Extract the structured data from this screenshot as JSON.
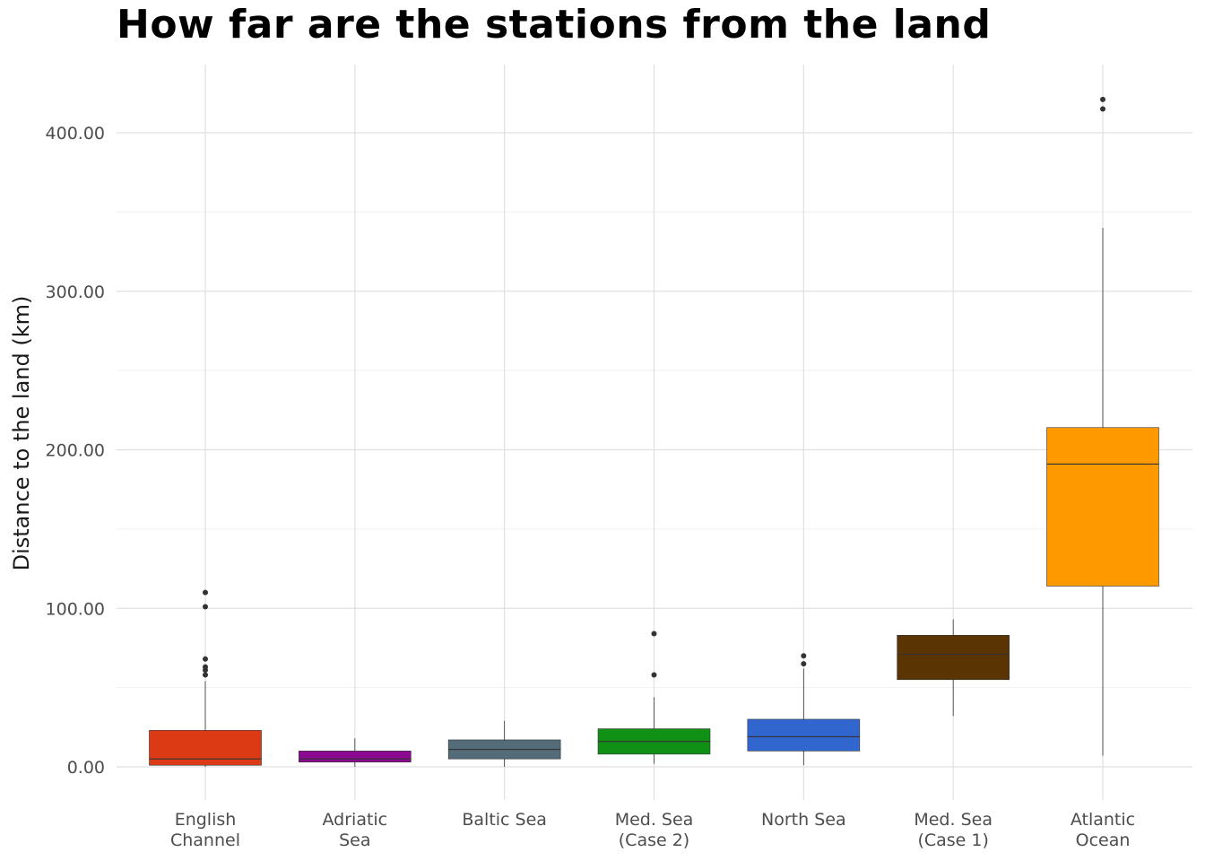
{
  "chart_data": {
    "type": "boxplot",
    "title": "How far are the stations from the land",
    "xlabel": "",
    "ylabel": "Distance to the land (km)",
    "ylim": [
      -22,
      442
    ],
    "yticks": [
      0,
      100,
      200,
      300,
      400
    ],
    "ytick_labels": [
      "0.00",
      "100.00",
      "200.00",
      "300.00",
      "400.00"
    ],
    "grid": true,
    "legend": "none",
    "categories": [
      {
        "label_lines": [
          "English",
          "Channel"
        ],
        "color": "#DC3A15",
        "min": 0,
        "q1": 1,
        "median": 5,
        "q3": 23,
        "max": 54,
        "outliers": [
          58,
          61,
          63,
          68,
          101,
          110
        ]
      },
      {
        "label_lines": [
          "Adriatic",
          "Sea"
        ],
        "color": "#8B0A91",
        "min": 0,
        "q1": 3,
        "median": 5,
        "q3": 10,
        "max": 18,
        "outliers": []
      },
      {
        "label_lines": [
          "Baltic Sea"
        ],
        "color": "#546B7A",
        "min": 0,
        "q1": 5,
        "median": 11,
        "q3": 17,
        "max": 29,
        "outliers": []
      },
      {
        "label_lines": [
          "Med. Sea",
          "(Case 2)"
        ],
        "color": "#119016",
        "min": 2,
        "q1": 8,
        "median": 16,
        "q3": 24,
        "max": 44,
        "outliers": [
          58,
          84
        ]
      },
      {
        "label_lines": [
          "North Sea"
        ],
        "color": "#3166CF",
        "min": 1,
        "q1": 10,
        "median": 19,
        "q3": 30,
        "max": 62,
        "outliers": [
          65,
          70
        ]
      },
      {
        "label_lines": [
          "Med. Sea",
          "(Case 1)"
        ],
        "color": "#5A3503",
        "min": 32,
        "q1": 55,
        "median": 71,
        "q3": 83,
        "max": 93,
        "outliers": []
      },
      {
        "label_lines": [
          "Atlantic",
          "Ocean"
        ],
        "color": "#FF9900",
        "min": 7,
        "q1": 114,
        "median": 191,
        "q3": 214,
        "max": 340,
        "outliers": [
          415,
          421
        ]
      }
    ]
  }
}
